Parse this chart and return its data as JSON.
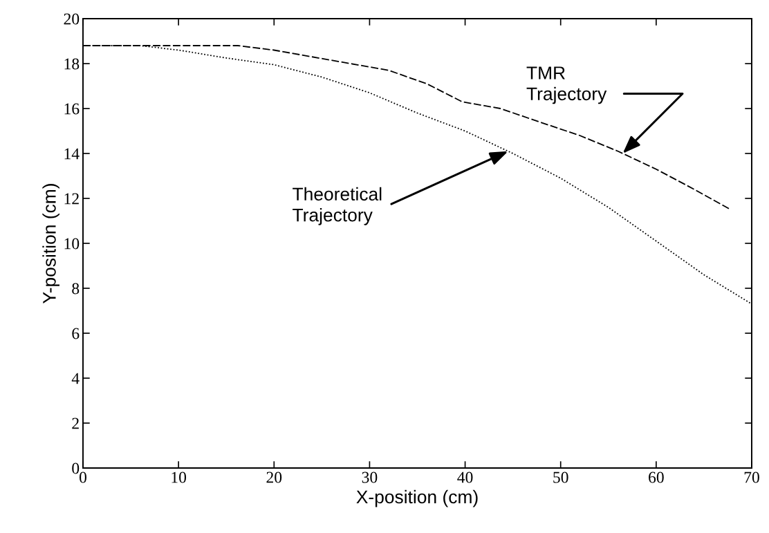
{
  "chart_data": {
    "type": "line",
    "xlabel": "X-position (cm)",
    "ylabel": "Y-position (cm)",
    "xlim": [
      0,
      70
    ],
    "ylim": [
      0,
      20
    ],
    "xticks": [
      0,
      10,
      20,
      30,
      40,
      50,
      60,
      70
    ],
    "yticks": [
      0,
      2,
      4,
      6,
      8,
      10,
      12,
      14,
      16,
      18,
      20
    ],
    "grid": false,
    "legend": false,
    "marker": "none",
    "series": [
      {
        "color": "#000000",
        "line_style": "dashed",
        "x": [
          0,
          16.2,
          20,
          24,
          28,
          32,
          36,
          39.7,
          43.7,
          47.8,
          52,
          56,
          60,
          64,
          67.8
        ],
        "values": [
          18.8,
          18.8,
          18.6,
          18.3,
          18.0,
          17.7,
          17.1,
          16.3,
          16.0,
          15.4,
          14.8,
          14.1,
          13.3,
          12.4,
          11.5
        ]
      },
      {
        "color": "#000000",
        "line_style": "dotted",
        "x": [
          0,
          6,
          10,
          15,
          20,
          25,
          30,
          35,
          40,
          45,
          50,
          55,
          60,
          65,
          70
        ],
        "values": [
          18.8,
          18.8,
          18.6,
          18.25,
          17.95,
          17.4,
          16.7,
          15.8,
          15.0,
          14.0,
          12.9,
          11.6,
          10.1,
          8.6,
          7.3
        ]
      }
    ],
    "annotations": [
      {
        "text": "TMR\nTrajectory",
        "x": 56.5,
        "y": 14.0
      },
      {
        "text": "Theoretical\nTrajectory",
        "x": 44.5,
        "y": 14.1
      }
    ]
  }
}
